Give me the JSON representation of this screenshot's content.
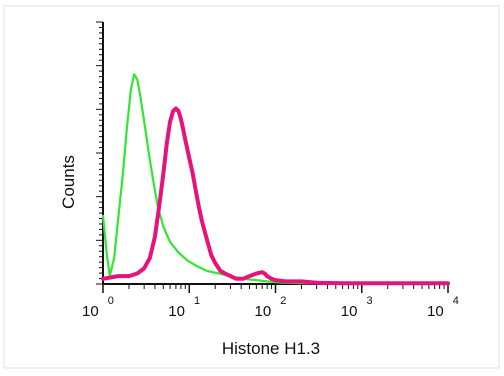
{
  "chart_data": {
    "type": "line",
    "title": "",
    "xlabel": "Histone H1.3",
    "ylabel": "Counts",
    "x_scale": "log",
    "xlim": [
      1,
      10000
    ],
    "ylim": [
      0,
      100
    ],
    "grid": false,
    "legend": "none",
    "x_tick_labels": [
      {
        "base": "10",
        "exp": "0"
      },
      {
        "base": "10",
        "exp": "1"
      },
      {
        "base": "10",
        "exp": "2"
      },
      {
        "base": "10",
        "exp": "3"
      },
      {
        "base": "10",
        "exp": "4"
      }
    ],
    "series": [
      {
        "color": "#33e633",
        "x": [
          1,
          1.1,
          1.2,
          1.35,
          1.5,
          1.7,
          1.9,
          2.1,
          2.3,
          2.5,
          2.7,
          3.0,
          3.4,
          3.8,
          4.3,
          5.0,
          6.0,
          7.5,
          9.5,
          12,
          16,
          22,
          30,
          42,
          60,
          80,
          120,
          200,
          400,
          1000,
          3000,
          10000
        ],
        "y": [
          26,
          12,
          3,
          10,
          25,
          42,
          60,
          74,
          80,
          78,
          72,
          62,
          50,
          40,
          30,
          22,
          16,
          12,
          9,
          7,
          5,
          4,
          3,
          2,
          1.5,
          1,
          0.5,
          0.3,
          0.2,
          0.1,
          0.1,
          0.1
        ]
      },
      {
        "color": "#e8127a",
        "x": [
          1,
          1.5,
          2,
          2.5,
          3,
          3.5,
          4,
          4.5,
          5,
          5.5,
          6,
          6.5,
          7,
          7.5,
          8,
          8.5,
          9,
          10,
          11,
          12,
          13,
          14,
          16,
          18,
          20,
          23,
          26,
          30,
          35,
          42,
          50,
          60,
          70,
          75,
          80,
          90,
          100,
          130,
          200,
          300,
          600,
          1000,
          3000,
          10000
        ],
        "y": [
          2,
          3,
          3,
          4,
          6,
          10,
          18,
          30,
          42,
          54,
          62,
          66,
          67,
          66,
          63,
          59,
          55,
          48,
          42,
          35,
          29,
          24,
          17,
          11,
          8,
          5,
          4,
          3,
          2,
          2,
          3,
          4,
          4.5,
          4,
          3,
          2,
          1.5,
          1,
          1,
          0.5,
          0.3,
          0.3,
          0.3,
          0.3
        ]
      }
    ]
  }
}
